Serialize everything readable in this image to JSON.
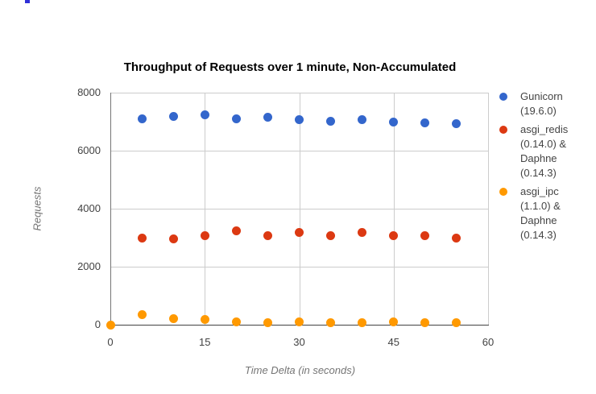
{
  "page": {
    "background": "#ffffff",
    "artifact_color": "#2f2fd8"
  },
  "chart_data": {
    "type": "scatter",
    "title": "Throughput of Requests over 1 minute, Non-Accumulated",
    "xlabel": "Time Delta (in seconds)",
    "ylabel": "Requests",
    "xlim": [
      0,
      60
    ],
    "ylim": [
      0,
      8000
    ],
    "x_ticks": [
      0,
      15,
      30,
      45,
      60
    ],
    "y_ticks": [
      0,
      2000,
      4000,
      6000,
      8000
    ],
    "grid": true,
    "legend_position": "right",
    "colors": {
      "gridline": "#cccccc",
      "axis_baseline": "#424242",
      "y_axis_line": "#757575",
      "tick_label": "#424242",
      "axis_title": "#757575",
      "legend_text": "#444444",
      "title_text": "#000000"
    },
    "series": [
      {
        "name": "Gunicorn (19.6.0)",
        "legend_lines": [
          "Gunicorn",
          "(19.6.0)"
        ],
        "color": "#3366CC",
        "x": [
          5,
          10,
          15,
          20,
          25,
          30,
          35,
          40,
          45,
          50,
          55
        ],
        "y": [
          7110,
          7180,
          7230,
          7110,
          7140,
          7080,
          7010,
          7080,
          6980,
          6950,
          6940
        ]
      },
      {
        "name": "asgi_redis (0.14.0) & Daphne (0.14.3)",
        "legend_lines": [
          "asgi_redis",
          "(0.14.0) &",
          "Daphne",
          "(0.14.3)"
        ],
        "color": "#DC3912",
        "x": [
          5,
          10,
          15,
          20,
          25,
          30,
          35,
          40,
          45,
          50,
          55
        ],
        "y": [
          3000,
          2970,
          3080,
          3230,
          3080,
          3190,
          3080,
          3190,
          3080,
          3080,
          2980
        ]
      },
      {
        "name": "asgi_ipc (1.1.0) & Daphne (0.14.3)",
        "legend_lines": [
          "asgi_ipc",
          "(1.1.0) &",
          "Daphne",
          "(0.14.3)"
        ],
        "color": "#FF9900",
        "x": [
          0,
          5,
          10,
          15,
          20,
          25,
          30,
          35,
          40,
          45,
          50,
          55
        ],
        "y": [
          0,
          360,
          220,
          190,
          110,
          80,
          110,
          80,
          80,
          110,
          60,
          60
        ]
      }
    ]
  }
}
